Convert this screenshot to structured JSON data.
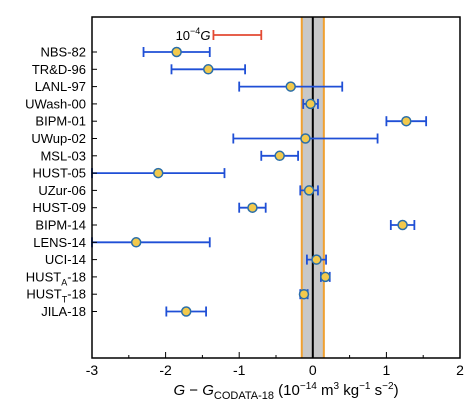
{
  "chart_data": {
    "type": "scatter",
    "xlim": [
      -3,
      2
    ],
    "xticks": [
      "-3",
      "-2",
      "-1",
      "0",
      "1",
      "2"
    ],
    "grid": false,
    "x_title_parts": {
      "g1": "G",
      "minus": " − ",
      "g2": "G",
      "sub": "CODATA-18",
      "open": " (10",
      "exp1": "−14",
      "m": " m",
      "exp2": "3",
      "kg": " kg",
      "exp3": "−1",
      "s": " s",
      "exp4": "−2",
      "close": ")"
    },
    "scale_marker": {
      "label_prefix": "10",
      "label_exp": "−4",
      "label_symbol": "G",
      "x_start": -1.35,
      "x_end": -0.7,
      "color": "#e34a33"
    },
    "codata_band": {
      "center": 0,
      "halfwidth": 0.15,
      "fill": "#c8c8c8",
      "edge_color": "#f0a030"
    },
    "measurements": [
      {
        "name": "NBS-82",
        "x": -1.85,
        "err": 0.45
      },
      {
        "name": "TR&D-96",
        "x": -1.42,
        "err": 0.5
      },
      {
        "name": "LANL-97",
        "x": -0.3,
        "err": 0.7
      },
      {
        "name": "UWash-00",
        "x": -0.03,
        "err": 0.1
      },
      {
        "name": "BIPM-01",
        "x": 1.27,
        "err": 0.27
      },
      {
        "name": "UWup-02",
        "x": -0.1,
        "err": 0.98
      },
      {
        "name": "MSL-03",
        "x": -0.45,
        "err": 0.25
      },
      {
        "name": "HUST-05",
        "x": -2.1,
        "err": 0.9
      },
      {
        "name": "UZur-06",
        "x": -0.05,
        "err": 0.12
      },
      {
        "name": "HUST-09",
        "x": -0.82,
        "err": 0.18
      },
      {
        "name": "BIPM-14",
        "x": 1.22,
        "err": 0.16
      },
      {
        "name": "LENS-14",
        "x": -2.4,
        "err": 1.0
      },
      {
        "name": "UCI-14",
        "x": 0.05,
        "err": 0.13
      },
      {
        "name": "HUST",
        "name_sub": "A",
        "name_suffix": "-18",
        "x": 0.17,
        "err": 0.06
      },
      {
        "name": "HUST",
        "name_sub": "T",
        "name_suffix": "-18",
        "x": -0.12,
        "err": 0.05
      },
      {
        "name": "JILA-18",
        "x": -1.72,
        "err": 0.27
      }
    ],
    "colors": {
      "marker_fill": "#f2c94c",
      "marker_edge": "#2a6ea8",
      "errorbar": "#1f4fd6",
      "zero_line": "#000000",
      "frame": "#000000"
    }
  }
}
